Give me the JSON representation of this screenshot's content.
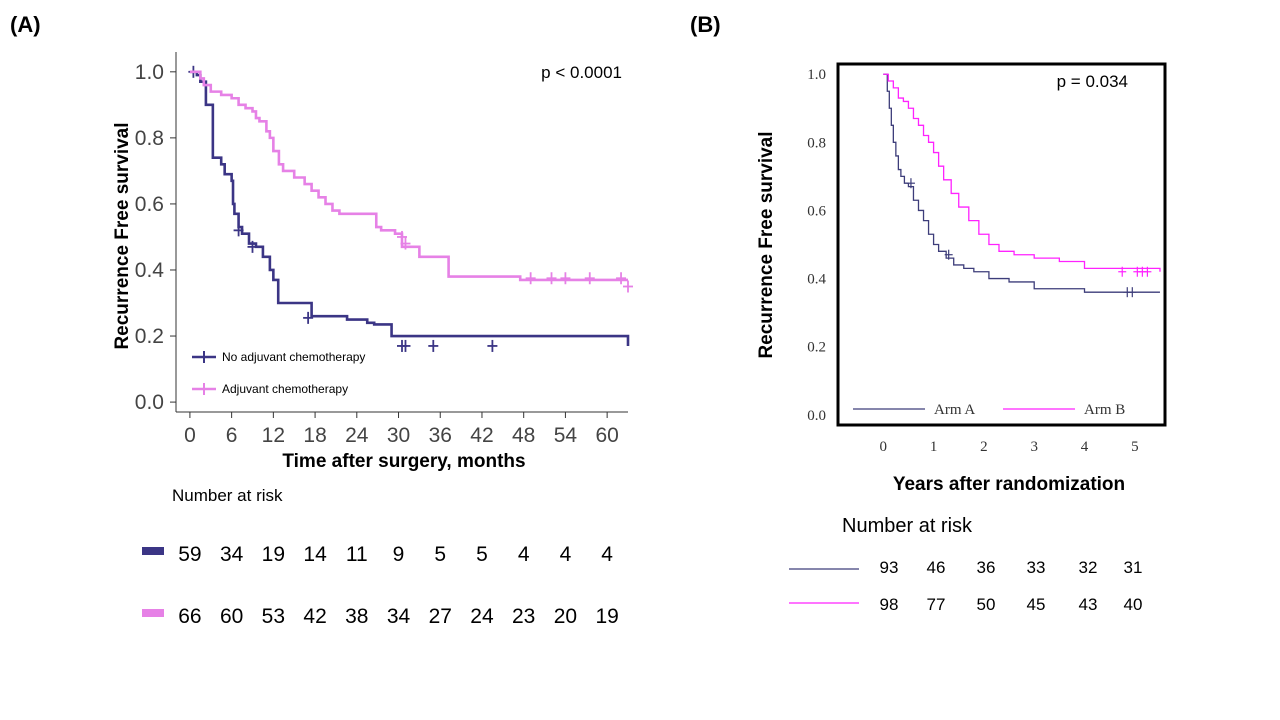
{
  "colors": {
    "no_adjuvant": "#3b3585",
    "adjuvant": "#e681e6",
    "arm_a": "#3d3d7a",
    "arm_b": "#ff22ff"
  },
  "chart_data": [
    {
      "panel": "(A)",
      "type": "line",
      "title": "",
      "xlabel": "Time after surgery, months",
      "ylabel": "Recurrence Free survival",
      "xlim": [
        -2,
        63
      ],
      "ylim": [
        -0.03,
        1.06
      ],
      "xticks": [
        "0",
        "6",
        "12",
        "18",
        "24",
        "30",
        "36",
        "42",
        "48",
        "54",
        "60"
      ],
      "yticks": [
        "0.0",
        "0.2",
        "0.4",
        "0.6",
        "0.8",
        "1.0"
      ],
      "annotation": "p < 0.0001",
      "legend_position": "bottom-left",
      "series": [
        {
          "name": "No adjuvant chemotherapy",
          "color_key": "no_adjuvant",
          "x": [
            0,
            1,
            1.5,
            2.3,
            3.3,
            3.3,
            4.5,
            5,
            6,
            6.2,
            6.4,
            7,
            7.5,
            8.5,
            9.5,
            10.5,
            11.5,
            12,
            12.7,
            17.5,
            22.6,
            25.5,
            26.5,
            29,
            63
          ],
          "y": [
            1.0,
            0.99,
            0.97,
            0.9,
            0.8,
            0.74,
            0.72,
            0.69,
            0.67,
            0.6,
            0.57,
            0.53,
            0.51,
            0.48,
            0.47,
            0.44,
            0.4,
            0.37,
            0.3,
            0.26,
            0.25,
            0.24,
            0.235,
            0.2,
            0.17
          ],
          "censor_x": [
            0.5,
            7,
            9,
            17,
            30.5,
            31,
            35,
            43.5
          ],
          "censor_y": [
            1.0,
            0.52,
            0.47,
            0.255,
            0.17,
            0.17,
            0.17,
            0.17
          ]
        },
        {
          "name": "Adjuvant chemotherapy",
          "color_key": "adjuvant",
          "x": [
            0,
            1.5,
            2,
            3,
            4.5,
            6,
            7,
            8,
            9,
            9.5,
            10,
            11,
            11.5,
            12,
            12.8,
            13.4,
            15,
            16.5,
            17.5,
            18.5,
            19.5,
            20.5,
            21.5,
            26.8,
            27.5,
            29.5,
            30.5,
            33,
            37.2,
            47.5,
            63
          ],
          "y": [
            1.0,
            0.98,
            0.96,
            0.94,
            0.93,
            0.92,
            0.9,
            0.89,
            0.88,
            0.86,
            0.85,
            0.82,
            0.8,
            0.76,
            0.72,
            0.7,
            0.68,
            0.66,
            0.64,
            0.62,
            0.6,
            0.58,
            0.57,
            0.53,
            0.52,
            0.51,
            0.47,
            0.44,
            0.38,
            0.37,
            0.37
          ],
          "censor_x": [
            30.5,
            31,
            49,
            52,
            54,
            57.5,
            62,
            63
          ],
          "censor_y": [
            0.5,
            0.48,
            0.375,
            0.375,
            0.375,
            0.375,
            0.375,
            0.35
          ]
        }
      ],
      "number_at_risk": {
        "label": "Number at risk",
        "rows": [
          {
            "color_key": "no_adjuvant",
            "values": [
              "59",
              "34",
              "19",
              "14",
              "11",
              "9",
              "5",
              "5",
              "4",
              "4",
              "4"
            ]
          },
          {
            "color_key": "adjuvant",
            "values": [
              "66",
              "60",
              "53",
              "42",
              "38",
              "34",
              "27",
              "24",
              "23",
              "20",
              "19"
            ]
          }
        ]
      }
    },
    {
      "panel": "(B)",
      "type": "line",
      "title": "",
      "xlabel": "Years after randomization",
      "ylabel": "Recurrence Free survival",
      "xlim": [
        -0.9,
        5.6
      ],
      "ylim": [
        -0.03,
        1.03
      ],
      "xticks": [
        "0",
        "1",
        "2",
        "3",
        "4",
        "5"
      ],
      "yticks": [
        "0.0",
        "0.2",
        "0.4",
        "0.6",
        "0.8",
        "1.0"
      ],
      "annotation": "p = 0.034",
      "legend_position": "bottom",
      "series": [
        {
          "name": "Arm A",
          "color_key": "arm_a",
          "x": [
            0,
            0.08,
            0.12,
            0.16,
            0.2,
            0.25,
            0.3,
            0.35,
            0.42,
            0.5,
            0.6,
            0.7,
            0.8,
            0.9,
            1.0,
            1.1,
            1.25,
            1.4,
            1.6,
            1.8,
            2.1,
            2.5,
            3.0,
            4.0,
            5.5
          ],
          "y": [
            1.0,
            0.95,
            0.9,
            0.85,
            0.8,
            0.76,
            0.72,
            0.7,
            0.68,
            0.67,
            0.63,
            0.6,
            0.57,
            0.53,
            0.5,
            0.48,
            0.46,
            0.44,
            0.43,
            0.42,
            0.4,
            0.39,
            0.37,
            0.36,
            0.36
          ],
          "censor_x": [
            0.55,
            1.3,
            4.85,
            4.95
          ],
          "censor_y": [
            0.68,
            0.47,
            0.36,
            0.36
          ]
        },
        {
          "name": "Arm B",
          "color_key": "arm_b",
          "x": [
            0,
            0.1,
            0.2,
            0.3,
            0.4,
            0.5,
            0.6,
            0.7,
            0.8,
            0.9,
            1.0,
            1.1,
            1.2,
            1.35,
            1.5,
            1.7,
            1.9,
            2.1,
            2.3,
            2.6,
            3.0,
            3.5,
            4.0,
            5.5
          ],
          "y": [
            1.0,
            0.98,
            0.96,
            0.93,
            0.92,
            0.9,
            0.87,
            0.85,
            0.82,
            0.8,
            0.77,
            0.73,
            0.69,
            0.65,
            0.61,
            0.57,
            0.53,
            0.5,
            0.48,
            0.47,
            0.46,
            0.45,
            0.43,
            0.42
          ],
          "censor_x": [
            4.75,
            5.05,
            5.15,
            5.25
          ],
          "censor_y": [
            0.42,
            0.42,
            0.42,
            0.42
          ]
        }
      ],
      "number_at_risk": {
        "label": "Number at risk",
        "rows": [
          {
            "color_key": "arm_a",
            "values": [
              "93",
              "46",
              "36",
              "33",
              "32",
              "31"
            ]
          },
          {
            "color_key": "arm_b",
            "values": [
              "98",
              "77",
              "50",
              "45",
              "43",
              "40"
            ]
          }
        ]
      }
    }
  ]
}
